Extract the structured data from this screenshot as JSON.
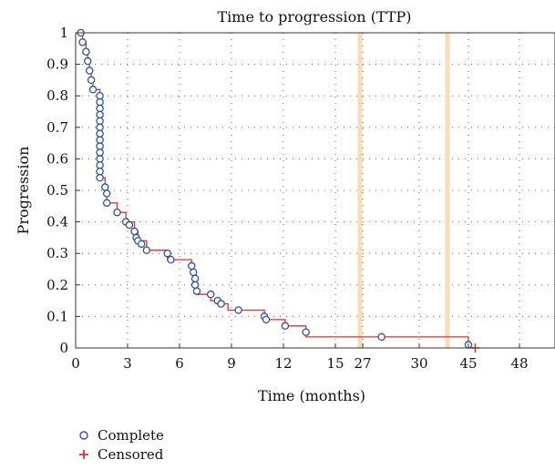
{
  "chart_data": {
    "type": "line",
    "title": "Time to progression (TTP)",
    "xlabel": "Time (months)",
    "ylabel": "Progression",
    "x_tick_labels": [
      "0",
      "3",
      "6",
      "9",
      "12",
      "15",
      "27",
      "30",
      "45",
      "48"
    ],
    "x_tick_values": [
      0,
      3,
      6,
      9,
      12,
      15,
      27,
      30,
      45,
      48
    ],
    "y_tick_labels": [
      "0",
      "0.1",
      "0.2",
      "0.3",
      "0.4",
      "0.5",
      "0.6",
      "0.7",
      "0.8",
      "0.9",
      "1"
    ],
    "ylim": [
      0,
      1
    ],
    "axis_breaks": [
      "between 15 and 27",
      "between 30 and 45"
    ],
    "grid": "dotted",
    "legend_position": "bottom-left",
    "step_color": "#e03030",
    "marker_color": "#3050a0",
    "break_color": "#f8dcb8",
    "step_curve": [
      [
        0,
        1.0
      ],
      [
        0.4,
        1.0
      ],
      [
        0.4,
        0.97
      ],
      [
        0.6,
        0.97
      ],
      [
        0.6,
        0.94
      ],
      [
        0.7,
        0.94
      ],
      [
        0.7,
        0.91
      ],
      [
        0.8,
        0.91
      ],
      [
        0.8,
        0.88
      ],
      [
        0.9,
        0.88
      ],
      [
        0.9,
        0.85
      ],
      [
        1.0,
        0.85
      ],
      [
        1.0,
        0.82
      ],
      [
        1.4,
        0.82
      ],
      [
        1.4,
        0.54
      ],
      [
        1.7,
        0.54
      ],
      [
        1.7,
        0.51
      ],
      [
        1.8,
        0.51
      ],
      [
        1.8,
        0.46
      ],
      [
        2.4,
        0.46
      ],
      [
        2.4,
        0.43
      ],
      [
        2.9,
        0.43
      ],
      [
        2.9,
        0.4
      ],
      [
        3.4,
        0.4
      ],
      [
        3.4,
        0.37
      ],
      [
        3.6,
        0.37
      ],
      [
        3.6,
        0.34
      ],
      [
        4.1,
        0.34
      ],
      [
        4.1,
        0.31
      ],
      [
        5.3,
        0.31
      ],
      [
        5.3,
        0.28
      ],
      [
        6.7,
        0.28
      ],
      [
        6.7,
        0.26
      ],
      [
        6.8,
        0.26
      ],
      [
        6.8,
        0.23
      ],
      [
        6.9,
        0.23
      ],
      [
        6.9,
        0.2
      ],
      [
        7.0,
        0.2
      ],
      [
        7.0,
        0.17
      ],
      [
        7.8,
        0.17
      ],
      [
        7.8,
        0.15
      ],
      [
        8.2,
        0.15
      ],
      [
        8.2,
        0.14
      ],
      [
        8.8,
        0.14
      ],
      [
        8.8,
        0.12
      ],
      [
        10.9,
        0.12
      ],
      [
        10.9,
        0.09
      ],
      [
        12.1,
        0.09
      ],
      [
        12.1,
        0.07
      ],
      [
        13.3,
        0.07
      ],
      [
        13.3,
        0.035
      ],
      [
        45.0,
        0.035
      ],
      [
        45.0,
        0.0
      ],
      [
        45.4,
        0.0
      ]
    ],
    "series": [
      {
        "name": "Complete",
        "marker": "circle",
        "points": [
          [
            0.3,
            1.0
          ],
          [
            0.4,
            0.97
          ],
          [
            0.6,
            0.94
          ],
          [
            0.7,
            0.91
          ],
          [
            0.8,
            0.88
          ],
          [
            0.9,
            0.85
          ],
          [
            1.0,
            0.82
          ],
          [
            1.4,
            0.8
          ],
          [
            1.4,
            0.78
          ],
          [
            1.4,
            0.76
          ],
          [
            1.4,
            0.74
          ],
          [
            1.4,
            0.72
          ],
          [
            1.4,
            0.7
          ],
          [
            1.4,
            0.68
          ],
          [
            1.4,
            0.66
          ],
          [
            1.4,
            0.64
          ],
          [
            1.4,
            0.62
          ],
          [
            1.4,
            0.6
          ],
          [
            1.4,
            0.58
          ],
          [
            1.4,
            0.56
          ],
          [
            1.4,
            0.54
          ],
          [
            1.7,
            0.51
          ],
          [
            1.8,
            0.49
          ],
          [
            1.8,
            0.46
          ],
          [
            2.4,
            0.43
          ],
          [
            2.9,
            0.4
          ],
          [
            3.1,
            0.39
          ],
          [
            3.4,
            0.37
          ],
          [
            3.5,
            0.35
          ],
          [
            3.6,
            0.34
          ],
          [
            3.8,
            0.33
          ],
          [
            4.1,
            0.31
          ],
          [
            5.3,
            0.3
          ],
          [
            5.5,
            0.28
          ],
          [
            6.7,
            0.26
          ],
          [
            6.8,
            0.24
          ],
          [
            6.9,
            0.22
          ],
          [
            6.9,
            0.2
          ],
          [
            7.0,
            0.18
          ],
          [
            7.8,
            0.17
          ],
          [
            8.2,
            0.15
          ],
          [
            8.4,
            0.14
          ],
          [
            9.4,
            0.12
          ],
          [
            10.9,
            0.1
          ],
          [
            11.0,
            0.09
          ],
          [
            12.1,
            0.07
          ],
          [
            13.3,
            0.05
          ],
          [
            28.0,
            0.035
          ],
          [
            45.0,
            0.01
          ]
        ]
      },
      {
        "name": "Censored",
        "marker": "plus",
        "points": [
          [
            45.4,
            0.0
          ]
        ]
      }
    ]
  }
}
